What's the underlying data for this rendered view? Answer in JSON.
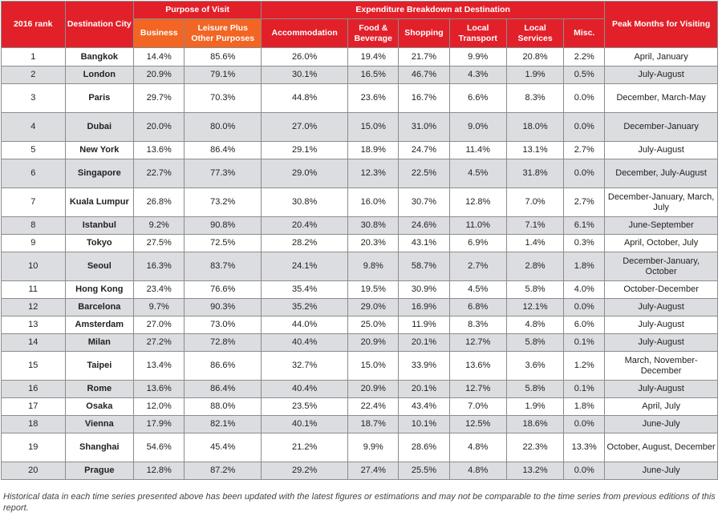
{
  "headers": {
    "rank": "2016 rank",
    "city": "Destination City",
    "purpose_group": "Purpose of Visit",
    "expenditure_group": "Expenditure Breakdown at Destination",
    "peak": "Peak Months for Visiting",
    "business": "Business",
    "leisure": "Leisure Plus Other Purposes",
    "accommodation": "Accommodation",
    "food": "Food & Beverage",
    "shopping": "Shopping",
    "transport": "Local Transport",
    "services": "Local Services",
    "misc": "Misc."
  },
  "rows": [
    {
      "rank": "1",
      "city": "Bangkok",
      "business": "14.4%",
      "leisure": "85.6%",
      "accommodation": "26.0%",
      "food": "19.4%",
      "shopping": "21.7%",
      "transport": "9.9%",
      "services": "20.8%",
      "misc": "2.2%",
      "peak": "April, January"
    },
    {
      "rank": "2",
      "city": "London",
      "business": "20.9%",
      "leisure": "79.1%",
      "accommodation": "30.1%",
      "food": "16.5%",
      "shopping": "46.7%",
      "transport": "4.3%",
      "services": "1.9%",
      "misc": "0.5%",
      "peak": "July-August"
    },
    {
      "rank": "3",
      "city": "Paris",
      "business": "29.7%",
      "leisure": "70.3%",
      "accommodation": "44.8%",
      "food": "23.6%",
      "shopping": "16.7%",
      "transport": "6.6%",
      "services": "8.3%",
      "misc": "0.0%",
      "peak": "December, March-May"
    },
    {
      "rank": "4",
      "city": "Dubai",
      "business": "20.0%",
      "leisure": "80.0%",
      "accommodation": "27.0%",
      "food": "15.0%",
      "shopping": "31.0%",
      "transport": "9.0%",
      "services": "18.0%",
      "misc": "0.0%",
      "peak": "December-January"
    },
    {
      "rank": "5",
      "city": "New York",
      "business": "13.6%",
      "leisure": "86.4%",
      "accommodation": "29.1%",
      "food": "18.9%",
      "shopping": "24.7%",
      "transport": "11.4%",
      "services": "13.1%",
      "misc": "2.7%",
      "peak": "July-August"
    },
    {
      "rank": "6",
      "city": "Singapore",
      "business": "22.7%",
      "leisure": "77.3%",
      "accommodation": "29.0%",
      "food": "12.3%",
      "shopping": "22.5%",
      "transport": "4.5%",
      "services": "31.8%",
      "misc": "0.0%",
      "peak": "December, July-August"
    },
    {
      "rank": "7",
      "city": "Kuala Lumpur",
      "business": "26.8%",
      "leisure": "73.2%",
      "accommodation": "30.8%",
      "food": "16.0%",
      "shopping": "30.7%",
      "transport": "12.8%",
      "services": "7.0%",
      "misc": "2.7%",
      "peak": "December-January, March, July"
    },
    {
      "rank": "8",
      "city": "Istanbul",
      "business": "9.2%",
      "leisure": "90.8%",
      "accommodation": "20.4%",
      "food": "30.8%",
      "shopping": "24.6%",
      "transport": "11.0%",
      "services": "7.1%",
      "misc": "6.1%",
      "peak": "June-September"
    },
    {
      "rank": "9",
      "city": "Tokyo",
      "business": "27.5%",
      "leisure": "72.5%",
      "accommodation": "28.2%",
      "food": "20.3%",
      "shopping": "43.1%",
      "transport": "6.9%",
      "services": "1.4%",
      "misc": "0.3%",
      "peak": "April, October, July"
    },
    {
      "rank": "10",
      "city": "Seoul",
      "business": "16.3%",
      "leisure": "83.7%",
      "accommodation": "24.1%",
      "food": "9.8%",
      "shopping": "58.7%",
      "transport": "2.7%",
      "services": "2.8%",
      "misc": "1.8%",
      "peak": "December-January, October"
    },
    {
      "rank": "11",
      "city": "Hong Kong",
      "business": "23.4%",
      "leisure": "76.6%",
      "accommodation": "35.4%",
      "food": "19.5%",
      "shopping": "30.9%",
      "transport": "4.5%",
      "services": "5.8%",
      "misc": "4.0%",
      "peak": "October-December"
    },
    {
      "rank": "12",
      "city": "Barcelona",
      "business": "9.7%",
      "leisure": "90.3%",
      "accommodation": "35.2%",
      "food": "29.0%",
      "shopping": "16.9%",
      "transport": "6.8%",
      "services": "12.1%",
      "misc": "0.0%",
      "peak": "July-August"
    },
    {
      "rank": "13",
      "city": "Amsterdam",
      "business": "27.0%",
      "leisure": "73.0%",
      "accommodation": "44.0%",
      "food": "25.0%",
      "shopping": "11.9%",
      "transport": "8.3%",
      "services": "4.8%",
      "misc": "6.0%",
      "peak": "July-August"
    },
    {
      "rank": "14",
      "city": "Milan",
      "business": "27.2%",
      "leisure": "72.8%",
      "accommodation": "40.4%",
      "food": "20.9%",
      "shopping": "20.1%",
      "transport": "12.7%",
      "services": "5.8%",
      "misc": "0.1%",
      "peak": "July-August"
    },
    {
      "rank": "15",
      "city": "Taipei",
      "business": "13.4%",
      "leisure": "86.6%",
      "accommodation": "32.7%",
      "food": "15.0%",
      "shopping": "33.9%",
      "transport": "13.6%",
      "services": "3.6%",
      "misc": "1.2%",
      "peak": "March, November-December"
    },
    {
      "rank": "16",
      "city": "Rome",
      "business": "13.6%",
      "leisure": "86.4%",
      "accommodation": "40.4%",
      "food": "20.9%",
      "shopping": "20.1%",
      "transport": "12.7%",
      "services": "5.8%",
      "misc": "0.1%",
      "peak": "July-August"
    },
    {
      "rank": "17",
      "city": "Osaka",
      "business": "12.0%",
      "leisure": "88.0%",
      "accommodation": "23.5%",
      "food": "22.4%",
      "shopping": "43.4%",
      "transport": "7.0%",
      "services": "1.9%",
      "misc": "1.8%",
      "peak": "April, July"
    },
    {
      "rank": "18",
      "city": "Vienna",
      "business": "17.9%",
      "leisure": "82.1%",
      "accommodation": "40.1%",
      "food": "18.7%",
      "shopping": "10.1%",
      "transport": "12.5%",
      "services": "18.6%",
      "misc": "0.0%",
      "peak": "June-July"
    },
    {
      "rank": "19",
      "city": "Shanghai",
      "business": "54.6%",
      "leisure": "45.4%",
      "accommodation": "21.2%",
      "food": "9.9%",
      "shopping": "28.6%",
      "transport": "4.8%",
      "services": "22.3%",
      "misc": "13.3%",
      "peak": "October, August, December"
    },
    {
      "rank": "20",
      "city": "Prague",
      "business": "12.8%",
      "leisure": "87.2%",
      "accommodation": "29.2%",
      "food": "27.4%",
      "shopping": "25.5%",
      "transport": "4.8%",
      "services": "13.2%",
      "misc": "0.0%",
      "peak": "June-July"
    }
  ],
  "footnote": "Historical data in each time series presented above has been updated with the latest figures or estimations and may not be comparable to the time series from previous editions of this report.",
  "colors": {
    "header_red": "#e2202a",
    "header_orange": "#f26522",
    "row_shade": "#dcdde1"
  }
}
